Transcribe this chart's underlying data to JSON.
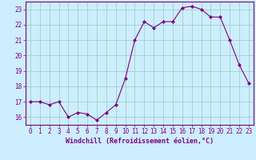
{
  "x": [
    0,
    1,
    2,
    3,
    4,
    5,
    6,
    7,
    8,
    9,
    10,
    11,
    12,
    13,
    14,
    15,
    16,
    17,
    18,
    19,
    20,
    21,
    22,
    23
  ],
  "y": [
    17.0,
    17.0,
    16.8,
    17.0,
    16.0,
    16.3,
    16.2,
    15.8,
    16.3,
    16.8,
    18.5,
    21.0,
    22.2,
    21.8,
    22.2,
    22.2,
    23.1,
    23.2,
    23.0,
    22.5,
    22.5,
    21.0,
    19.4,
    18.2
  ],
  "line_color": "#800080",
  "marker": "D",
  "marker_size": 2.0,
  "bg_color": "#cceeff",
  "grid_color": "#99ccbb",
  "xlabel": "Windchill (Refroidissement éolien,°C)",
  "ylim": [
    15.5,
    23.5
  ],
  "xlim": [
    -0.5,
    23.5
  ],
  "yticks": [
    16,
    17,
    18,
    19,
    20,
    21,
    22,
    23
  ],
  "xticks": [
    0,
    1,
    2,
    3,
    4,
    5,
    6,
    7,
    8,
    9,
    10,
    11,
    12,
    13,
    14,
    15,
    16,
    17,
    18,
    19,
    20,
    21,
    22,
    23
  ],
  "tick_fontsize": 5.5,
  "xlabel_fontsize": 6.0
}
